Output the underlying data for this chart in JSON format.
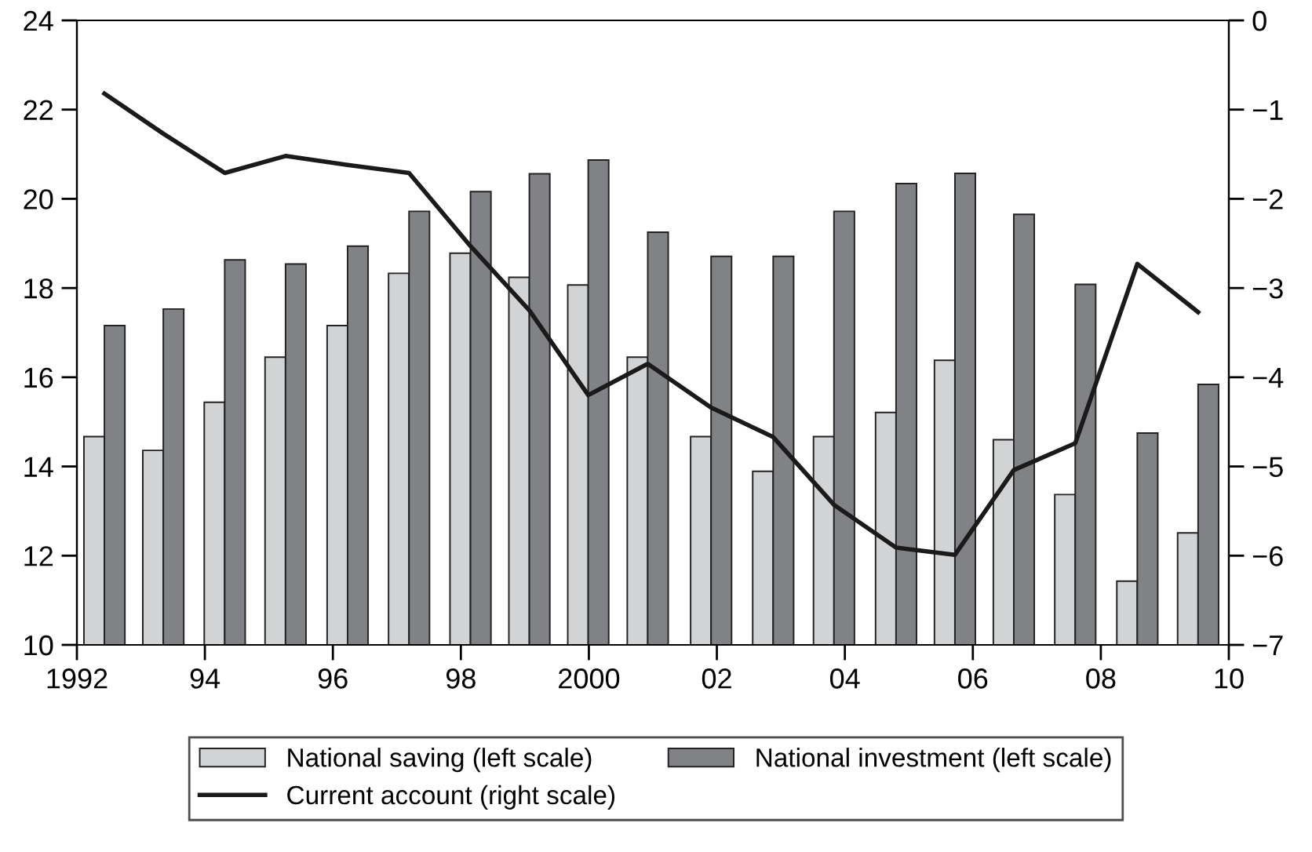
{
  "chart_data": {
    "type": "bar",
    "x": [
      1992.43,
      1993.35,
      1994.31,
      1995.26,
      1996.23,
      1997.19,
      1998.15,
      1999.07,
      1999.99,
      2000.92,
      2001.91,
      2002.88,
      2003.83,
      2004.8,
      2005.72,
      2006.64,
      2007.6,
      2008.57,
      2009.52
    ],
    "series": [
      {
        "name": "National saving (left scale)",
        "color": "#d1d3d4",
        "values": [
          14.67,
          14.36,
          15.44,
          16.45,
          17.16,
          18.33,
          18.78,
          18.24,
          18.07,
          16.45,
          14.67,
          13.89,
          14.67,
          15.21,
          16.38,
          14.6,
          13.37,
          11.43,
          12.51
        ]
      },
      {
        "name": "National investment (left scale)",
        "color": "#808285",
        "values": [
          17.16,
          17.53,
          18.63,
          18.54,
          18.94,
          19.72,
          20.16,
          20.56,
          20.87,
          19.25,
          18.71,
          18.71,
          19.72,
          20.34,
          20.57,
          19.65,
          18.08,
          14.75,
          15.84
        ]
      },
      {
        "name": "Current account (right scale)",
        "type": "line",
        "axis": "y2",
        "color": "#1a1a1a",
        "values": [
          -0.82,
          -1.27,
          -1.71,
          -1.52,
          -1.62,
          -1.71,
          -2.53,
          -3.25,
          -4.2,
          -3.85,
          -4.34,
          -4.67,
          -5.43,
          -5.91,
          -5.99,
          -5.04,
          -4.74,
          -2.73,
          -3.27
        ]
      }
    ],
    "xlim": [
      1992,
      2010
    ],
    "xticks": [
      {
        "value": 1992,
        "label": "1992"
      },
      {
        "value": 1994,
        "label": "94"
      },
      {
        "value": 1996,
        "label": "96"
      },
      {
        "value": 1998,
        "label": "98"
      },
      {
        "value": 2000,
        "label": "2000"
      },
      {
        "value": 2002,
        "label": "02"
      },
      {
        "value": 2004,
        "label": "04"
      },
      {
        "value": 2006,
        "label": "06"
      },
      {
        "value": 2008,
        "label": "08"
      },
      {
        "value": 2010,
        "label": "10"
      }
    ],
    "ylim": [
      10,
      24
    ],
    "yticks": [
      10,
      12,
      14,
      16,
      18,
      20,
      22,
      24
    ],
    "y2lim": [
      -7,
      0
    ],
    "y2ticks": [
      -7,
      -6,
      -5,
      -4,
      -3,
      -2,
      -1,
      0
    ],
    "grid": false,
    "legend": "bottom",
    "line_style": "solid",
    "marker": "none"
  }
}
